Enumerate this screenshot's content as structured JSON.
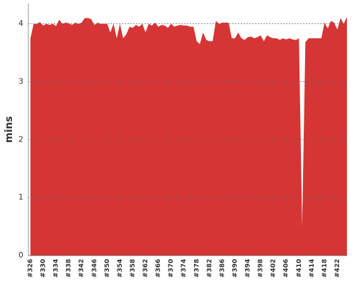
{
  "chart_data": {
    "type": "area",
    "y_label": "mins",
    "color": "#d63535",
    "categories": [
      "#326",
      null,
      null,
      null,
      "#330",
      null,
      null,
      null,
      "#334",
      null,
      null,
      null,
      "#338",
      null,
      null,
      null,
      "#342",
      null,
      null,
      null,
      "#346",
      null,
      null,
      null,
      "#350",
      null,
      null,
      null,
      "#354",
      null,
      null,
      null,
      "#358",
      null,
      null,
      null,
      "#362",
      null,
      null,
      null,
      "#366",
      null,
      null,
      null,
      "#370",
      null,
      null,
      null,
      "#374",
      null,
      null,
      null,
      "#378",
      null,
      null,
      null,
      "#382",
      null,
      null,
      null,
      "#386",
      null,
      null,
      null,
      "#390",
      null,
      null,
      null,
      "#394",
      null,
      null,
      null,
      "#398",
      null,
      null,
      null,
      "#402",
      null,
      null,
      null,
      "#406",
      null,
      null,
      null,
      "#410",
      null,
      null,
      null,
      "#414",
      null,
      null,
      null,
      "#418",
      null,
      null,
      null,
      "#422",
      null,
      null,
      null
    ],
    "values": [
      3.75,
      4.0,
      4.0,
      4.03,
      3.97,
      4.0,
      3.98,
      4.0,
      3.96,
      4.07,
      4.0,
      4.02,
      4.01,
      3.98,
      4.02,
      4.0,
      4.02,
      4.1,
      4.1,
      4.08,
      3.98,
      4.02,
      4.0,
      4.0,
      4.0,
      3.85,
      4.0,
      3.75,
      4.0,
      3.75,
      3.82,
      3.95,
      3.93,
      3.98,
      3.95,
      4.0,
      3.85,
      4.0,
      3.97,
      4.02,
      3.95,
      3.98,
      3.97,
      3.93,
      4.0,
      3.95,
      3.97,
      3.98,
      3.97,
      3.97,
      3.95,
      3.95,
      3.7,
      3.65,
      3.85,
      3.72,
      3.7,
      3.7,
      4.05,
      4.0,
      4.02,
      4.02,
      4.02,
      3.75,
      3.75,
      3.85,
      3.75,
      3.72,
      3.77,
      3.78,
      3.75,
      3.77,
      3.8,
      3.7,
      3.8,
      3.77,
      3.75,
      3.75,
      3.72,
      3.75,
      3.73,
      3.75,
      3.73,
      3.72,
      3.75,
      0.5,
      3.68,
      3.75,
      3.75,
      3.75,
      3.75,
      3.75,
      4.02,
      3.92,
      4.05,
      4.02,
      3.9,
      4.1,
      4.0,
      4.12
    ],
    "ylim": [
      0,
      4.35
    ],
    "yticks": [
      0,
      1,
      2,
      3,
      4
    ],
    "grid": true
  }
}
